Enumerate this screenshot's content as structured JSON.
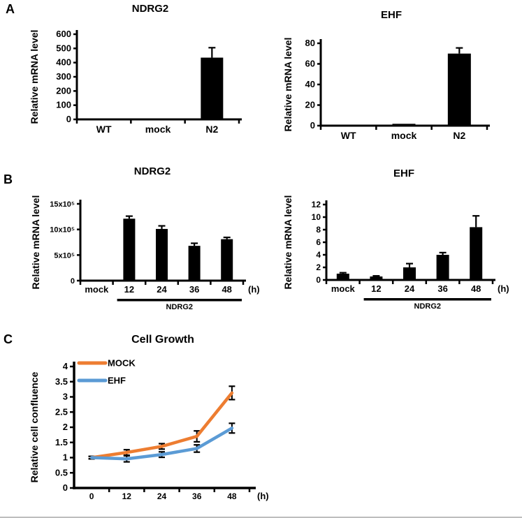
{
  "panels": {
    "a": {
      "label": "A"
    },
    "b": {
      "label": "B"
    },
    "c": {
      "label": "C"
    }
  },
  "colors": {
    "bar": "#000000",
    "axis": "#000000",
    "mock_line": "#ED7D31",
    "ehf_line": "#5B9BD5"
  },
  "chart_data": [
    {
      "id": "panelA-NDRG2",
      "type": "bar",
      "title": "NDRG2",
      "ylabel": "Relative mRNA level",
      "categories": [
        "WT",
        "mock",
        "N2"
      ],
      "values": [
        5,
        7,
        435
      ],
      "errors": [
        0,
        0,
        70
      ],
      "ylim": [
        0,
        600
      ],
      "yticks": [
        0,
        100,
        200,
        300,
        400,
        500,
        600
      ],
      "bar_color": "#000000"
    },
    {
      "id": "panelA-EHF",
      "type": "bar",
      "title": "EHF",
      "ylabel": "Relative mRNA level",
      "categories": [
        "WT",
        "mock",
        "N2"
      ],
      "values": [
        0.8,
        1.8,
        70
      ],
      "errors": [
        0,
        0,
        5.5
      ],
      "ylim": [
        0,
        80
      ],
      "yticks": [
        0,
        20,
        40,
        60,
        80
      ],
      "bar_color": "#000000"
    },
    {
      "id": "panelB-NDRG2",
      "type": "bar",
      "title": "NDRG2",
      "ylabel": "Relative mRNA level",
      "categories": [
        "mock",
        "12",
        "24",
        "36",
        "48"
      ],
      "values": [
        0,
        12.1,
        10.1,
        6.8,
        8.1
      ],
      "errors": [
        0,
        0.5,
        0.6,
        0.5,
        0.35
      ],
      "ylim": [
        0,
        15
      ],
      "yticks": [
        0,
        5,
        10,
        15
      ],
      "ytick_labels": [
        "0",
        "5x10⁵",
        "10x10⁵",
        "15x10⁵"
      ],
      "y_unit": "x10^5",
      "x_suffix": "(h)",
      "group": {
        "from": 1,
        "to": 4,
        "label": "NDRG2"
      },
      "bar_color": "#000000"
    },
    {
      "id": "panelB-EHF",
      "type": "bar",
      "title": "EHF",
      "ylabel": "Relative mRNA level",
      "categories": [
        "mock",
        "12",
        "24",
        "36",
        "48"
      ],
      "values": [
        1.0,
        0.55,
        2.0,
        4.0,
        8.4
      ],
      "errors": [
        0.15,
        0.1,
        0.6,
        0.35,
        1.8
      ],
      "ylim": [
        0,
        12
      ],
      "yticks": [
        0,
        2,
        4,
        6,
        8,
        10,
        12
      ],
      "x_suffix": "(h)",
      "group": {
        "from": 1,
        "to": 4,
        "label": "NDRG2"
      },
      "bar_color": "#000000"
    },
    {
      "id": "panelC-growth",
      "type": "line",
      "title": "Cell Growth",
      "ylabel": "Relative cell confluence",
      "x": [
        "0",
        "12",
        "24",
        "36",
        "48"
      ],
      "series": [
        {
          "name": "MOCK",
          "color": "#ED7D31",
          "values": [
            1.0,
            1.17,
            1.37,
            1.7,
            3.13
          ],
          "errors": [
            0.04,
            0.09,
            0.09,
            0.18,
            0.22
          ]
        },
        {
          "name": "EHF",
          "color": "#5B9BD5",
          "values": [
            1.0,
            0.96,
            1.1,
            1.3,
            1.97
          ],
          "errors": [
            0.04,
            0.1,
            0.09,
            0.12,
            0.16
          ]
        }
      ],
      "ylim": [
        0,
        4
      ],
      "yticks": [
        0,
        0.5,
        1,
        1.5,
        2,
        2.5,
        3,
        3.5,
        4
      ],
      "ytick_labels": [
        "0",
        "0.5",
        "1",
        "1.5",
        "2",
        "2.5",
        "3",
        "3.5",
        "4"
      ],
      "x_suffix": "(h)",
      "legend_position": "top-left",
      "grid": false
    }
  ]
}
